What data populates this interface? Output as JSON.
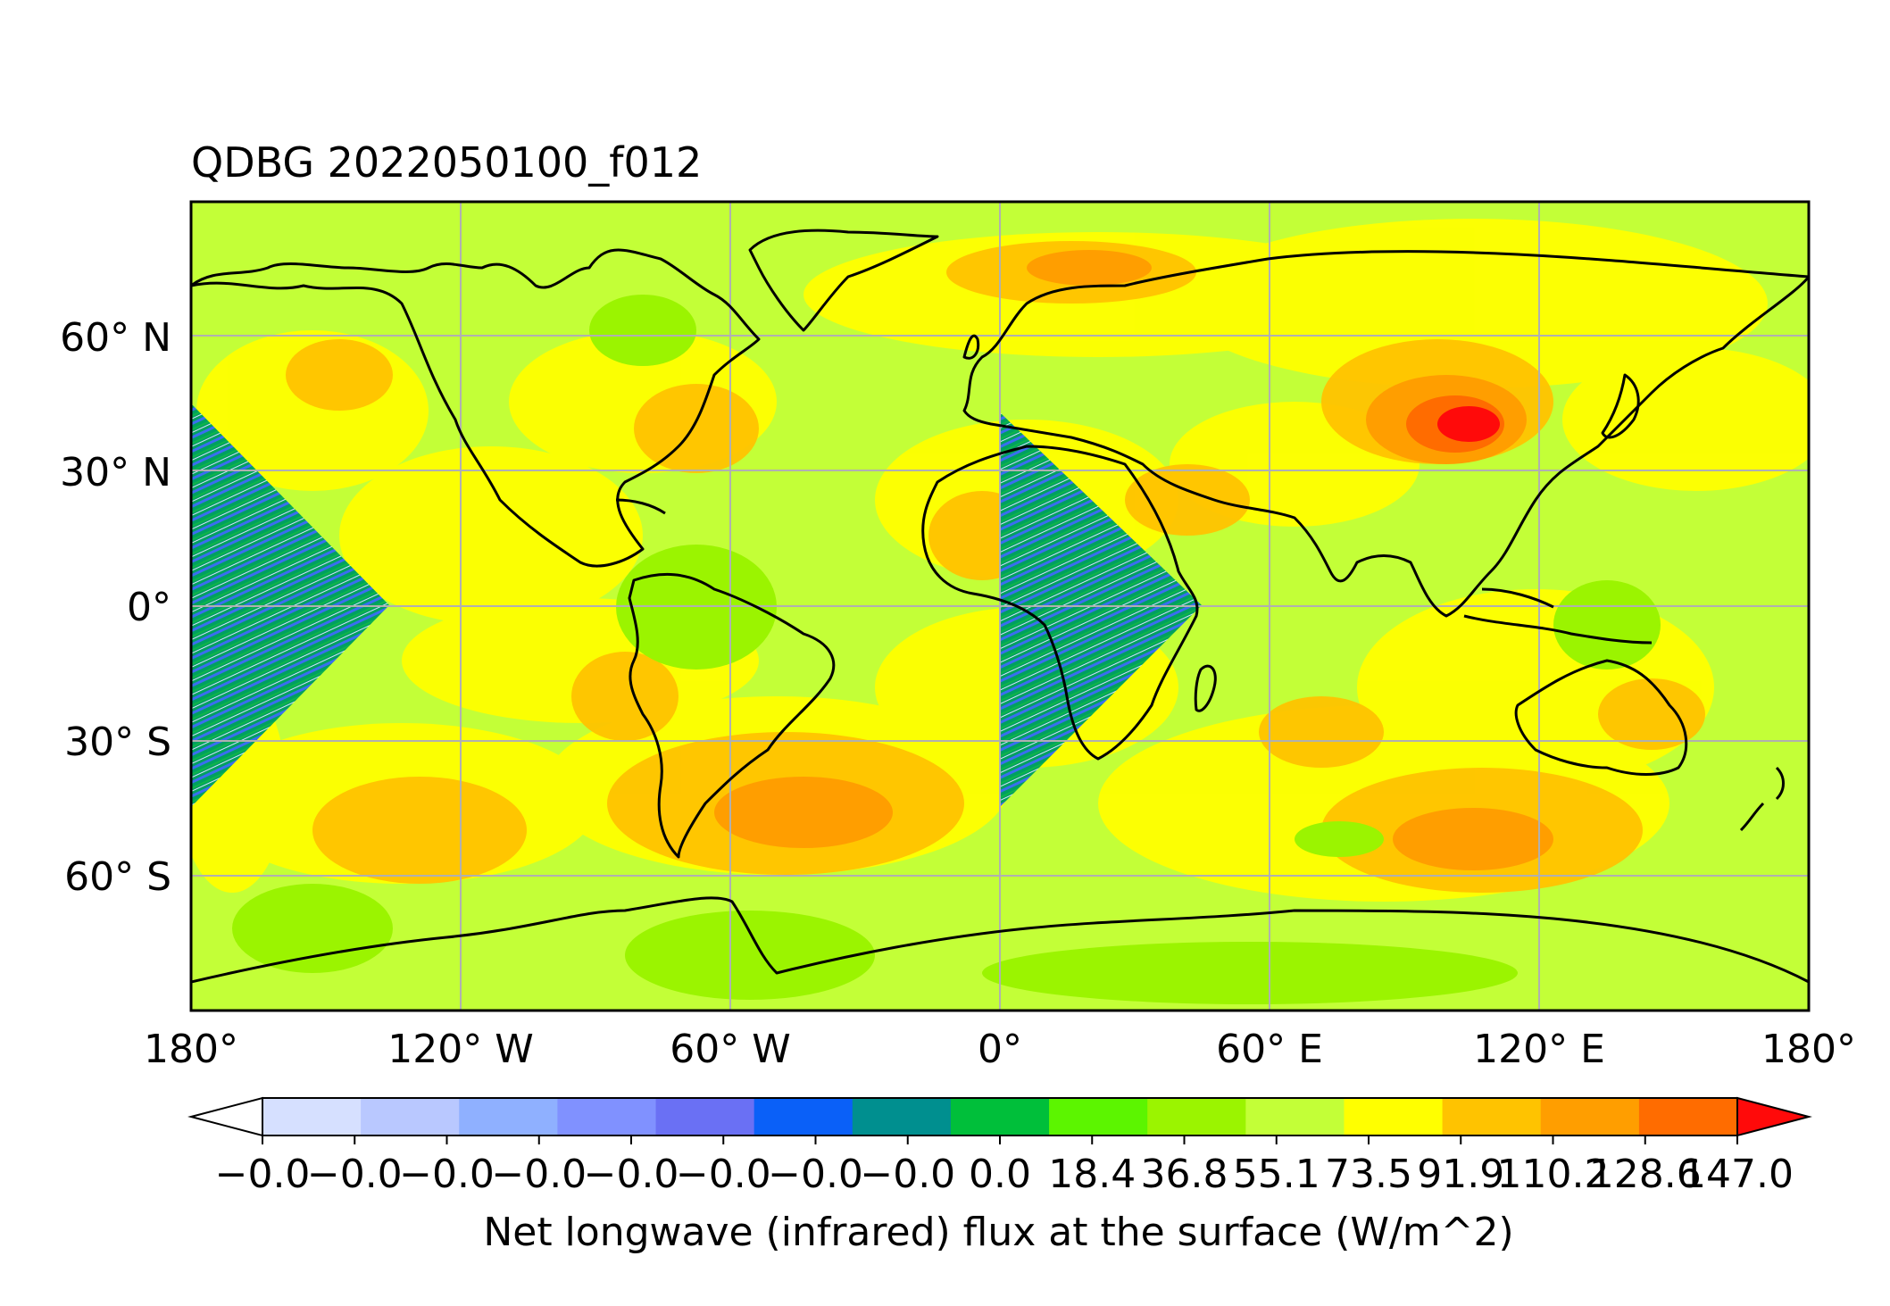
{
  "title": "QDBG 2022050100_f012",
  "colorbar_label": "Net longwave (infrared) flux at the surface (W/m^2)",
  "chart_data": {
    "type": "heatmap",
    "title": "QDBG 2022050100_f012",
    "projection": "PlateCarree",
    "xlim": [
      -180,
      180
    ],
    "ylim": [
      -90,
      90
    ],
    "grid": true,
    "coastlines": true,
    "x_ticks": [
      {
        "value": -180,
        "label": "180°"
      },
      {
        "value": -120,
        "label": "120° W"
      },
      {
        "value": -60,
        "label": "60° W"
      },
      {
        "value": 0,
        "label": "0°"
      },
      {
        "value": 60,
        "label": "60° E"
      },
      {
        "value": 120,
        "label": "120° E"
      },
      {
        "value": 180,
        "label": "180°"
      }
    ],
    "y_ticks": [
      {
        "value": 60,
        "label": "60° N"
      },
      {
        "value": 30,
        "label": "30° N"
      },
      {
        "value": 0,
        "label": "0°"
      },
      {
        "value": -30,
        "label": "30° S"
      },
      {
        "value": -60,
        "label": "60° S"
      }
    ],
    "colorbar": {
      "label": "Net longwave (infrared) flux at the surface (W/m^2)",
      "orientation": "horizontal",
      "extend": "both",
      "tick_labels": [
        "−0.0",
        "−0.0",
        "−0.0",
        "−0.0",
        "−0.0",
        "−0.0",
        "−0.0",
        "−0.0",
        "0.0",
        "18.4",
        "36.8",
        "55.1",
        "73.5",
        "91.9",
        "110.2",
        "128.6",
        "147.0"
      ],
      "colors": [
        "#ffffff",
        "#d6e0ff",
        "#b9c8ff",
        "#8fb0ff",
        "#8091ff",
        "#6a70f4",
        "#0a60f8",
        "#008f8f",
        "#00bf3a",
        "#5cf500",
        "#9bf400",
        "#c3ff37",
        "#ffff00",
        "#ffc300",
        "#ff9e00",
        "#ff6c00",
        "#ff0a0a"
      ]
    }
  }
}
